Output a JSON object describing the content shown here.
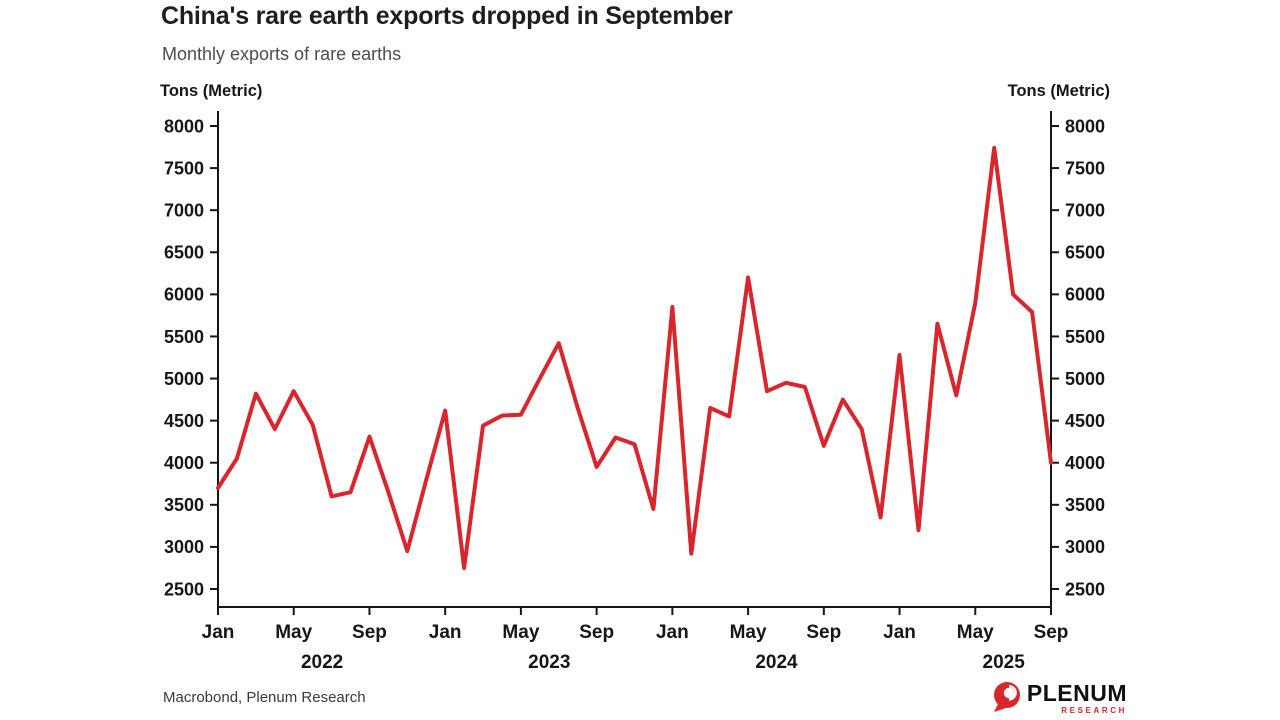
{
  "footer": {
    "source": "Macrobond, Plenum Research",
    "logo_text": "PLENUM",
    "logo_subtext": "RESEARCH"
  },
  "chart_data": {
    "type": "line",
    "title": "China's rare earth exports dropped in September",
    "subtitle": "Monthly exports of rare earths",
    "ylabel_left": "Tons (Metric)",
    "ylabel_right": "Tons (Metric)",
    "ylim": [
      2500,
      8000
    ],
    "ytick_step": 500,
    "xtick_months": [
      "Jan",
      "May",
      "Sep"
    ],
    "year_labels": [
      "2022",
      "2023",
      "2024",
      "2025"
    ],
    "line_color": "#d8262c",
    "axis_color": "#161616",
    "grid": "off",
    "legend": "none",
    "categories": [
      "Jan 2022",
      "Feb 2022",
      "Mar 2022",
      "Apr 2022",
      "May 2022",
      "Jun 2022",
      "Jul 2022",
      "Aug 2022",
      "Sep 2022",
      "Oct 2022",
      "Nov 2022",
      "Dec 2022",
      "Jan 2023",
      "Feb 2023",
      "Mar 2023",
      "Apr 2023",
      "May 2023",
      "Jun 2023",
      "Jul 2023",
      "Aug 2023",
      "Sep 2023",
      "Oct 2023",
      "Nov 2023",
      "Dec 2023",
      "Jan 2024",
      "Feb 2024",
      "Mar 2024",
      "Apr 2024",
      "May 2024",
      "Jun 2024",
      "Jul 2024",
      "Aug 2024",
      "Sep 2024",
      "Oct 2024",
      "Nov 2024",
      "Dec 2024",
      "Jan 2025",
      "Feb 2025",
      "Mar 2025",
      "Apr 2025",
      "May 2025",
      "Jun 2025",
      "Jul 2025",
      "Aug 2025",
      "Sep 2025"
    ],
    "series": [
      {
        "name": "Monthly exports of rare earths",
        "values": [
          3700,
          4050,
          4820,
          4400,
          4850,
          4450,
          3600,
          3650,
          4310,
          3650,
          2950,
          3800,
          4620,
          2750,
          4440,
          4560,
          4570,
          5000,
          5420,
          4650,
          3950,
          4300,
          4220,
          3450,
          5850,
          2920,
          4650,
          4550,
          6200,
          4850,
          4950,
          4900,
          4200,
          4750,
          4400,
          3350,
          5280,
          3200,
          5650,
          4800,
          5900,
          7740,
          6000,
          5790,
          4000
        ]
      }
    ]
  }
}
